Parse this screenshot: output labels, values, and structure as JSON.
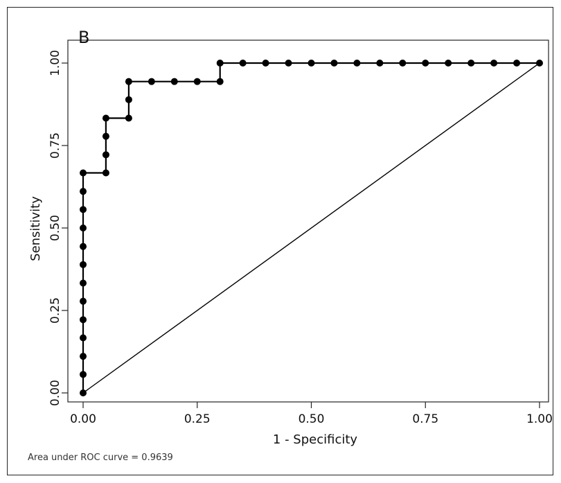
{
  "panel_label": "B",
  "footnote": "Area under ROC curve = 0.9639",
  "chart_data": {
    "type": "line",
    "title": "",
    "xlabel": "1 - Specificity",
    "ylabel": "Sensitivity",
    "xlim": [
      0,
      1
    ],
    "ylim": [
      0,
      1
    ],
    "x_ticks": [
      "0.00",
      "0.25",
      "0.50",
      "0.75",
      "1.00"
    ],
    "y_ticks": [
      "0.00",
      "0.25",
      "0.50",
      "0.75",
      "1.00"
    ],
    "grid": false,
    "legend": "none",
    "series": [
      {
        "style": "step-with-markers",
        "color": "#000000",
        "points": [
          [
            0.0,
            0.0
          ],
          [
            0.0,
            0.056
          ],
          [
            0.0,
            0.111
          ],
          [
            0.0,
            0.167
          ],
          [
            0.0,
            0.222
          ],
          [
            0.0,
            0.278
          ],
          [
            0.0,
            0.333
          ],
          [
            0.0,
            0.389
          ],
          [
            0.0,
            0.444
          ],
          [
            0.0,
            0.5
          ],
          [
            0.0,
            0.556
          ],
          [
            0.0,
            0.611
          ],
          [
            0.0,
            0.667
          ],
          [
            0.05,
            0.667
          ],
          [
            0.05,
            0.722
          ],
          [
            0.05,
            0.778
          ],
          [
            0.05,
            0.833
          ],
          [
            0.1,
            0.833
          ],
          [
            0.1,
            0.889
          ],
          [
            0.1,
            0.944
          ],
          [
            0.15,
            0.944
          ],
          [
            0.2,
            0.944
          ],
          [
            0.25,
            0.944
          ],
          [
            0.3,
            0.944
          ],
          [
            0.3,
            1.0
          ],
          [
            0.35,
            1.0
          ],
          [
            0.4,
            1.0
          ],
          [
            0.45,
            1.0
          ],
          [
            0.5,
            1.0
          ],
          [
            0.55,
            1.0
          ],
          [
            0.6,
            1.0
          ],
          [
            0.65,
            1.0
          ],
          [
            0.7,
            1.0
          ],
          [
            0.75,
            1.0
          ],
          [
            0.8,
            1.0
          ],
          [
            0.85,
            1.0
          ],
          [
            0.9,
            1.0
          ],
          [
            0.95,
            1.0
          ],
          [
            1.0,
            1.0
          ]
        ]
      },
      {
        "style": "reference-diagonal",
        "color": "#000000",
        "points": [
          [
            0,
            0
          ],
          [
            1,
            1
          ]
        ]
      }
    ]
  }
}
